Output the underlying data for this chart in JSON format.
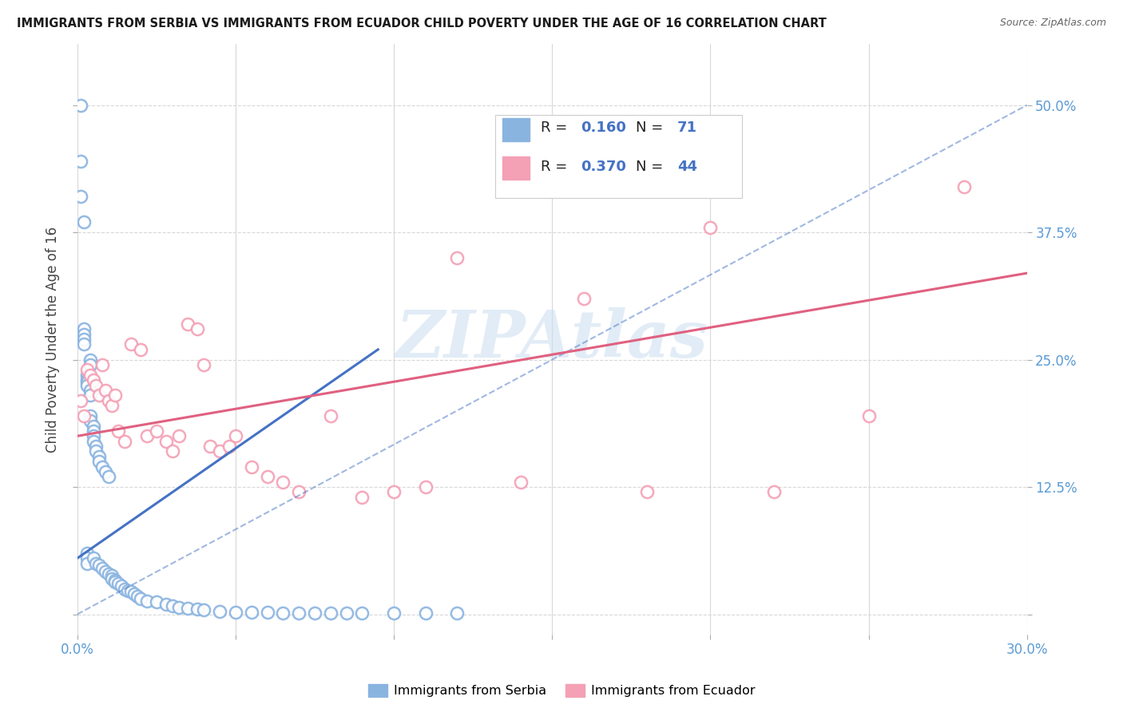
{
  "title": "IMMIGRANTS FROM SERBIA VS IMMIGRANTS FROM ECUADOR CHILD POVERTY UNDER THE AGE OF 16 CORRELATION CHART",
  "source": "Source: ZipAtlas.com",
  "ylabel": "Child Poverty Under the Age of 16",
  "xlim": [
    0.0,
    0.3
  ],
  "ylim": [
    -0.02,
    0.56
  ],
  "serbia_color": "#8ab4e0",
  "ecuador_color": "#f4a0b5",
  "serbia_line_color": "#4472c4",
  "ecuador_line_color": "#e06080",
  "serbia_R": 0.16,
  "serbia_N": 71,
  "ecuador_R": 0.37,
  "ecuador_N": 44,
  "watermark": "ZIPAtlas",
  "background_color": "#ffffff",
  "grid_color": "#d8d8d8",
  "serbia_x": [
    0.001,
    0.001,
    0.001,
    0.002,
    0.002,
    0.002,
    0.002,
    0.002,
    0.003,
    0.003,
    0.003,
    0.003,
    0.003,
    0.003,
    0.003,
    0.004,
    0.004,
    0.004,
    0.004,
    0.004,
    0.004,
    0.005,
    0.005,
    0.005,
    0.005,
    0.005,
    0.006,
    0.006,
    0.006,
    0.007,
    0.007,
    0.007,
    0.008,
    0.008,
    0.009,
    0.009,
    0.01,
    0.01,
    0.011,
    0.011,
    0.012,
    0.012,
    0.013,
    0.014,
    0.015,
    0.016,
    0.017,
    0.018,
    0.019,
    0.02,
    0.022,
    0.025,
    0.028,
    0.03,
    0.032,
    0.035,
    0.038,
    0.04,
    0.045,
    0.05,
    0.055,
    0.06,
    0.065,
    0.07,
    0.075,
    0.08,
    0.085,
    0.09,
    0.1,
    0.11,
    0.12
  ],
  "serbia_y": [
    0.5,
    0.445,
    0.41,
    0.385,
    0.28,
    0.275,
    0.27,
    0.265,
    0.235,
    0.23,
    0.228,
    0.225,
    0.06,
    0.055,
    0.05,
    0.25,
    0.245,
    0.22,
    0.215,
    0.195,
    0.19,
    0.185,
    0.18,
    0.175,
    0.17,
    0.055,
    0.165,
    0.16,
    0.05,
    0.155,
    0.15,
    0.048,
    0.145,
    0.045,
    0.14,
    0.042,
    0.135,
    0.04,
    0.038,
    0.035,
    0.033,
    0.032,
    0.03,
    0.028,
    0.025,
    0.023,
    0.022,
    0.02,
    0.018,
    0.015,
    0.013,
    0.012,
    0.01,
    0.008,
    0.007,
    0.006,
    0.005,
    0.004,
    0.003,
    0.002,
    0.002,
    0.002,
    0.001,
    0.001,
    0.001,
    0.001,
    0.001,
    0.001,
    0.001,
    0.001,
    0.001
  ],
  "ecuador_x": [
    0.001,
    0.002,
    0.003,
    0.004,
    0.005,
    0.006,
    0.007,
    0.008,
    0.009,
    0.01,
    0.011,
    0.012,
    0.013,
    0.015,
    0.017,
    0.02,
    0.022,
    0.025,
    0.028,
    0.03,
    0.032,
    0.035,
    0.038,
    0.04,
    0.042,
    0.045,
    0.048,
    0.05,
    0.055,
    0.06,
    0.065,
    0.07,
    0.08,
    0.09,
    0.1,
    0.11,
    0.12,
    0.14,
    0.16,
    0.18,
    0.2,
    0.22,
    0.25,
    0.28
  ],
  "ecuador_y": [
    0.21,
    0.195,
    0.24,
    0.235,
    0.23,
    0.225,
    0.215,
    0.245,
    0.22,
    0.21,
    0.205,
    0.215,
    0.18,
    0.17,
    0.265,
    0.26,
    0.175,
    0.18,
    0.17,
    0.16,
    0.175,
    0.285,
    0.28,
    0.245,
    0.165,
    0.16,
    0.165,
    0.175,
    0.145,
    0.135,
    0.13,
    0.12,
    0.195,
    0.115,
    0.12,
    0.125,
    0.35,
    0.13,
    0.31,
    0.12,
    0.38,
    0.12,
    0.195,
    0.42
  ]
}
